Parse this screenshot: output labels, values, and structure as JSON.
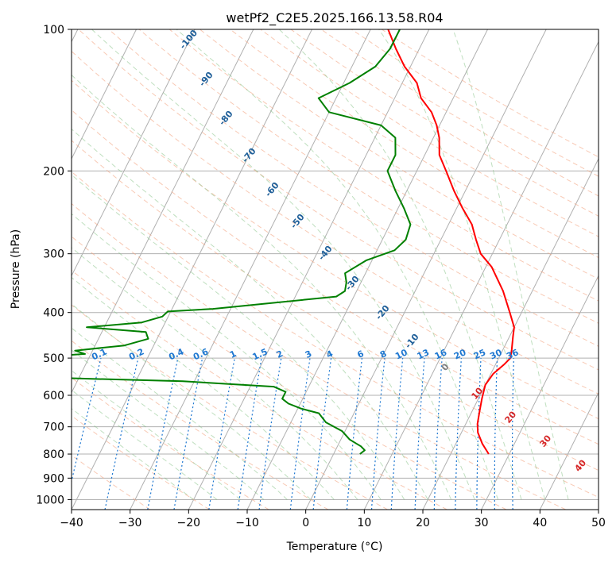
{
  "chart_data": {
    "type": "line",
    "title": "wetPf2_C2E5.2025.166.13.58.R04",
    "xlabel": "Temperature (°C)",
    "ylabel": "Pressure (hPa)",
    "xlim": [
      -40,
      50
    ],
    "ylim": [
      1050,
      100
    ],
    "y_scale": "log",
    "grid": true,
    "x_ticks": [
      -40,
      -30,
      -20,
      -10,
      0,
      10,
      20,
      30,
      40,
      50
    ],
    "x_tick_labels": [
      "−40",
      "−30",
      "−20",
      "−10",
      "0",
      "10",
      "20",
      "30",
      "40",
      "50"
    ],
    "y_ticks": [
      100,
      200,
      300,
      400,
      500,
      600,
      700,
      800,
      900,
      1000
    ],
    "y_tick_labels": [
      "100",
      "200",
      "300",
      "400",
      "500",
      "600",
      "700",
      "800",
      "900",
      "1000"
    ],
    "series": [
      {
        "role": "temperature",
        "color": "#ff0000",
        "points": [
          {
            "p": 800,
            "t": 26.5
          },
          {
            "p": 760,
            "t": 24.5
          },
          {
            "p": 720,
            "t": 22.8
          },
          {
            "p": 690,
            "t": 22.0
          },
          {
            "p": 650,
            "t": 21.3
          },
          {
            "p": 610,
            "t": 20.6
          },
          {
            "p": 570,
            "t": 20.0
          },
          {
            "p": 540,
            "t": 20.4
          },
          {
            "p": 515,
            "t": 21.5
          },
          {
            "p": 500,
            "t": 22.0
          },
          {
            "p": 480,
            "t": 21.5
          },
          {
            "p": 450,
            "t": 20.6
          },
          {
            "p": 430,
            "t": 20.0
          },
          {
            "p": 400,
            "t": 18.0
          },
          {
            "p": 360,
            "t": 15.0
          },
          {
            "p": 320,
            "t": 11.0
          },
          {
            "p": 300,
            "t": 8.0
          },
          {
            "p": 280,
            "t": 6.0
          },
          {
            "p": 260,
            "t": 4.0
          },
          {
            "p": 240,
            "t": 1.0
          },
          {
            "p": 220,
            "t": -2.0
          },
          {
            "p": 200,
            "t": -5.0
          },
          {
            "p": 185,
            "t": -7.5
          },
          {
            "p": 170,
            "t": -9.0
          },
          {
            "p": 160,
            "t": -10.5
          },
          {
            "p": 150,
            "t": -12.5
          },
          {
            "p": 140,
            "t": -15.5
          },
          {
            "p": 130,
            "t": -17.5
          },
          {
            "p": 120,
            "t": -21.0
          },
          {
            "p": 110,
            "t": -24.0
          },
          {
            "p": 100,
            "t": -27.0
          }
        ]
      },
      {
        "role": "dewpoint",
        "color": "#008000",
        "points": [
          {
            "p": 800,
            "t": 4.5
          },
          {
            "p": 785,
            "t": 5.0
          },
          {
            "p": 770,
            "t": 4.0
          },
          {
            "p": 760,
            "t": 3.0
          },
          {
            "p": 745,
            "t": 1.5
          },
          {
            "p": 715,
            "t": -0.5
          },
          {
            "p": 685,
            "t": -4.0
          },
          {
            "p": 670,
            "t": -5.0
          },
          {
            "p": 655,
            "t": -6.0
          },
          {
            "p": 640,
            "t": -9.5
          },
          {
            "p": 625,
            "t": -12.0
          },
          {
            "p": 610,
            "t": -13.5
          },
          {
            "p": 590,
            "t": -13.5
          },
          {
            "p": 575,
            "t": -16.0
          },
          {
            "p": 560,
            "t": -32.0
          },
          {
            "p": 545,
            "t": -68.0
          },
          {
            "p": 510,
            "t": -70.0
          },
          {
            "p": 500,
            "t": -62.0
          },
          {
            "p": 490,
            "t": -51.0
          },
          {
            "p": 482,
            "t": -53.0
          },
          {
            "p": 470,
            "t": -45.0
          },
          {
            "p": 455,
            "t": -41.5
          },
          {
            "p": 440,
            "t": -42.5
          },
          {
            "p": 430,
            "t": -53.0
          },
          {
            "p": 420,
            "t": -44.0
          },
          {
            "p": 408,
            "t": -41.0
          },
          {
            "p": 398,
            "t": -40.5
          },
          {
            "p": 393,
            "t": -33.0
          },
          {
            "p": 370,
            "t": -13.0
          },
          {
            "p": 360,
            "t": -12.0
          },
          {
            "p": 345,
            "t": -12.5
          },
          {
            "p": 330,
            "t": -13.5
          },
          {
            "p": 310,
            "t": -11.0
          },
          {
            "p": 295,
            "t": -7.0
          },
          {
            "p": 280,
            "t": -6.0
          },
          {
            "p": 260,
            "t": -6.5
          },
          {
            "p": 240,
            "t": -9.0
          },
          {
            "p": 220,
            "t": -12.0
          },
          {
            "p": 200,
            "t": -15.0
          },
          {
            "p": 185,
            "t": -15.0
          },
          {
            "p": 170,
            "t": -16.5
          },
          {
            "p": 160,
            "t": -20.0
          },
          {
            "p": 150,
            "t": -30.0
          },
          {
            "p": 140,
            "t": -33.0
          },
          {
            "p": 130,
            "t": -29.0
          },
          {
            "p": 120,
            "t": -26.0
          },
          {
            "p": 110,
            "t": -25.0
          },
          {
            "p": 100,
            "t": -25.0
          }
        ]
      }
    ],
    "mixing_ratio_labels": [
      "0.1",
      "0.2",
      "0.4",
      "0.6",
      "1",
      "1.5",
      "2",
      "3",
      "4",
      "6",
      "8",
      "10",
      "13",
      "16",
      "20",
      "25",
      "30",
      "36"
    ],
    "dry_adiabat_labels": [
      "-100",
      "-90",
      "-80",
      "-70",
      "-60",
      "-50",
      "-40",
      "-30",
      "-20",
      "-10"
    ],
    "moist_adiabat_labels": [
      "0",
      "10",
      "20",
      "30",
      "40"
    ],
    "colors": {
      "isotherm": "#b0b0b0",
      "isobar": "#b0b0b0",
      "dry_adiabat": "#f4a582",
      "moist_adiabat": "#7fbf7f",
      "mixing_ratio": "#1f78d1",
      "dry_label": "#1f5f99",
      "moist_label": "#d62728",
      "zero_label": "#7f7f7f"
    }
  }
}
